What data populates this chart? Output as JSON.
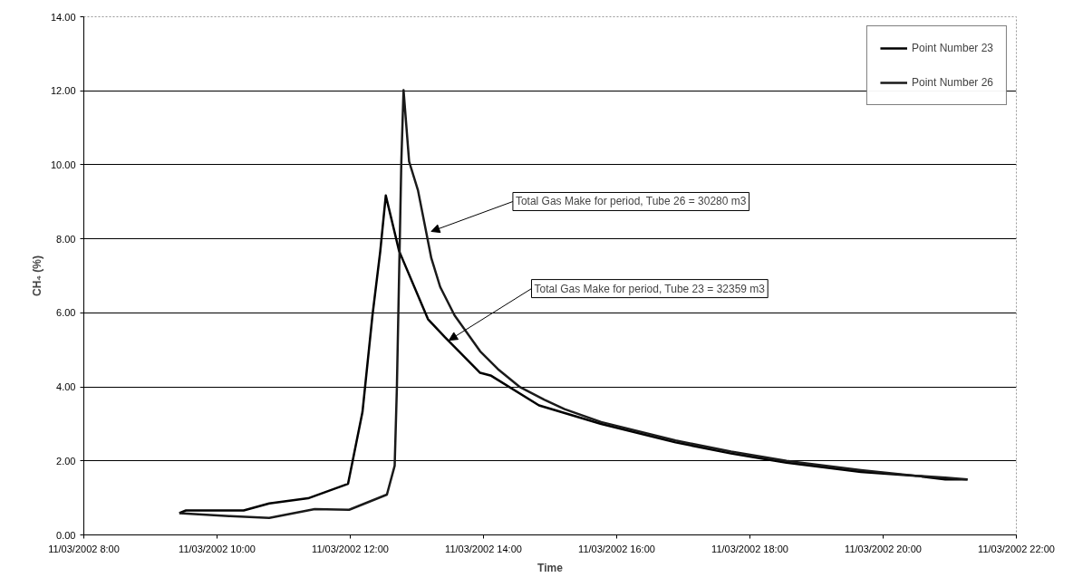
{
  "chart_data": {
    "type": "line",
    "xlabel": "Time",
    "ylabel": "CH₄ (%)",
    "xlim": [
      "2002-03-11T08:00",
      "2002-03-11T22:00"
    ],
    "xticks": [
      {
        "value": "2002-03-11T08:00",
        "label": "11/03/2002 8:00"
      },
      {
        "value": "2002-03-11T10:00",
        "label": "11/03/2002 10:00"
      },
      {
        "value": "2002-03-11T12:00",
        "label": "11/03/2002 12:00"
      },
      {
        "value": "2002-03-11T14:00",
        "label": "11/03/2002 14:00"
      },
      {
        "value": "2002-03-11T16:00",
        "label": "11/03/2002 16:00"
      },
      {
        "value": "2002-03-11T18:00",
        "label": "11/03/2002 18:00"
      },
      {
        "value": "2002-03-11T20:00",
        "label": "11/03/2002 20:00"
      },
      {
        "value": "2002-03-11T22:00",
        "label": "11/03/2002 22:00"
      }
    ],
    "ylim": [
      0,
      14
    ],
    "yticks": [
      {
        "value": 0,
        "label": "0.00"
      },
      {
        "value": 2,
        "label": "2.00"
      },
      {
        "value": 4,
        "label": "4.00"
      },
      {
        "value": 6,
        "label": "6.00"
      },
      {
        "value": 8,
        "label": "8.00"
      },
      {
        "value": 10,
        "label": "10.00"
      },
      {
        "value": 12,
        "label": "12.00"
      },
      {
        "value": 14,
        "label": "14.00"
      }
    ],
    "grid": "y",
    "legend": "top right",
    "marker": "none",
    "line_style": "solid",
    "series": [
      {
        "name": "Point Number 23",
        "color": "#000000",
        "x": [
          "2002-03-11T09:26",
          "2002-03-11T09:32",
          "2002-03-11T10:24",
          "2002-03-11T10:47",
          "2002-03-11T11:22",
          "2002-03-11T11:58",
          "2002-03-11T12:11",
          "2002-03-11T12:20",
          "2002-03-11T12:27",
          "2002-03-11T12:32",
          "2002-03-11T12:44",
          "2002-03-11T13:10",
          "2002-03-11T13:25",
          "2002-03-11T13:57",
          "2002-03-11T14:07",
          "2002-03-11T14:50",
          "2002-03-11T15:46",
          "2002-03-11T16:53",
          "2002-03-11T17:43",
          "2002-03-11T18:33",
          "2002-03-11T19:40",
          "2002-03-11T20:29",
          "2002-03-11T20:56",
          "2002-03-11T21:16"
        ],
        "values": [
          0.59,
          0.66,
          0.66,
          0.85,
          0.99,
          1.38,
          3.32,
          5.93,
          7.66,
          9.17,
          7.67,
          5.83,
          5.35,
          4.38,
          4.3,
          3.5,
          3.0,
          2.5,
          2.2,
          1.95,
          1.7,
          1.6,
          1.5,
          1.5
        ]
      },
      {
        "name": "Point Number 26",
        "color": "#1a1a1a",
        "x": [
          "2002-03-11T09:26",
          "2002-03-11T10:11",
          "2002-03-11T10:47",
          "2002-03-11T11:28",
          "2002-03-11T11:59",
          "2002-03-11T12:33",
          "2002-03-11T12:40",
          "2002-03-11T12:42",
          "2002-03-11T12:46",
          "2002-03-11T12:48",
          "2002-03-11T12:53",
          "2002-03-11T13:01",
          "2002-03-11T13:13",
          "2002-03-11T13:21",
          "2002-03-11T13:34",
          "2002-03-11T13:57",
          "2002-03-11T14:13",
          "2002-03-11T14:33",
          "2002-03-11T14:55",
          "2002-03-11T15:13",
          "2002-03-11T15:46",
          "2002-03-11T16:53",
          "2002-03-11T17:43",
          "2002-03-11T18:33",
          "2002-03-11T19:40",
          "2002-03-11T20:29",
          "2002-03-11T20:56",
          "2002-03-11T21:16"
        ],
        "values": [
          0.59,
          0.51,
          0.46,
          0.7,
          0.68,
          1.09,
          1.87,
          3.99,
          10.09,
          12.02,
          10.09,
          9.31,
          7.48,
          6.7,
          5.93,
          4.96,
          4.48,
          3.99,
          3.65,
          3.4,
          3.05,
          2.55,
          2.25,
          2.0,
          1.75,
          1.6,
          1.55,
          1.5
        ]
      }
    ],
    "annotations": [
      {
        "text": "Total Gas Make for period, Tube 26 = 30280 m3",
        "x": "2002-03-11T13:13",
        "y": 8.2
      },
      {
        "text": "Total Gas Make for period, Tube 23 = 32359 m3",
        "x": "2002-03-11T13:29",
        "y": 5.26
      }
    ]
  }
}
